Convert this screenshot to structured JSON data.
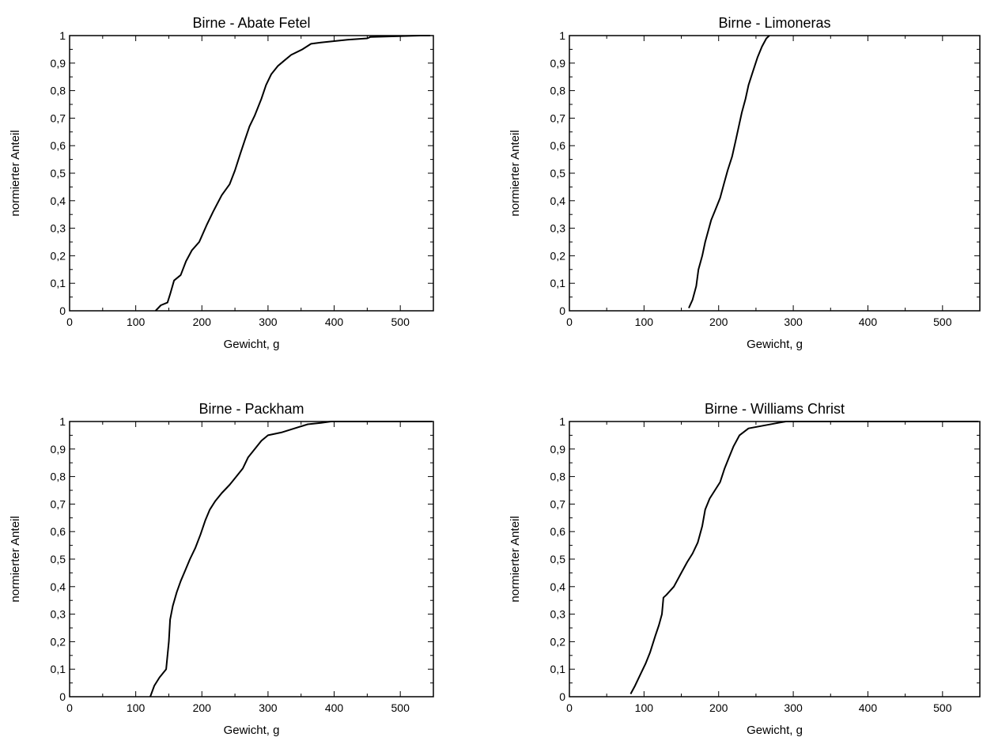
{
  "chart_data": [
    {
      "type": "line",
      "title": "Birne - Abate Fetel",
      "xlabel": "Gewicht, g",
      "ylabel": "normierter Anteil",
      "xlim": [
        0,
        550
      ],
      "ylim": [
        0,
        1
      ],
      "xticks": [
        "0",
        "100",
        "200",
        "300",
        "400",
        "500"
      ],
      "yticks": [
        "0",
        "0,1",
        "0,2",
        "0,3",
        "0,4",
        "0,5",
        "0,6",
        "0,7",
        "0,8",
        "0,9",
        "1"
      ],
      "grid": false,
      "series": [
        {
          "x": [
            130,
            138,
            148,
            152,
            158,
            168,
            176,
            185,
            196,
            207,
            217,
            230,
            242,
            250,
            258,
            265,
            272,
            280,
            290,
            297,
            305,
            315,
            325,
            335,
            352,
            365,
            380,
            420,
            450,
            455,
            530,
            545
          ],
          "y": [
            0,
            0.02,
            0.03,
            0.06,
            0.11,
            0.13,
            0.18,
            0.22,
            0.25,
            0.31,
            0.36,
            0.42,
            0.46,
            0.51,
            0.57,
            0.62,
            0.67,
            0.71,
            0.77,
            0.82,
            0.86,
            0.89,
            0.91,
            0.93,
            0.95,
            0.97,
            0.975,
            0.985,
            0.99,
            0.995,
            1.0,
            1.0
          ]
        }
      ]
    },
    {
      "type": "line",
      "title": "Birne - Limoneras",
      "xlabel": "Gewicht, g",
      "ylabel": "normierter Anteil",
      "xlim": [
        0,
        550
      ],
      "ylim": [
        0,
        1
      ],
      "xticks": [
        "0",
        "100",
        "200",
        "300",
        "400",
        "500"
      ],
      "yticks": [
        "0",
        "0,1",
        "0,2",
        "0,3",
        "0,4",
        "0,5",
        "0,6",
        "0,7",
        "0,8",
        "0,9",
        "1"
      ],
      "grid": false,
      "series": [
        {
          "x": [
            160,
            165,
            170,
            173,
            178,
            182,
            186,
            190,
            196,
            202,
            207,
            212,
            218,
            223,
            227,
            231,
            236,
            240,
            246,
            252,
            258,
            264,
            268
          ],
          "y": [
            0.01,
            0.04,
            0.09,
            0.15,
            0.2,
            0.25,
            0.29,
            0.33,
            0.37,
            0.41,
            0.46,
            0.51,
            0.56,
            0.62,
            0.67,
            0.72,
            0.77,
            0.82,
            0.87,
            0.92,
            0.96,
            0.99,
            1.0
          ]
        }
      ]
    },
    {
      "type": "line",
      "title": "Birne - Packham",
      "xlabel": "Gewicht, g",
      "ylabel": "normierter Anteil",
      "xlim": [
        0,
        550
      ],
      "ylim": [
        0,
        1
      ],
      "xticks": [
        "0",
        "100",
        "200",
        "300",
        "400",
        "500"
      ],
      "yticks": [
        "0",
        "0,1",
        "0,2",
        "0,3",
        "0,4",
        "0,5",
        "0,6",
        "0,7",
        "0,8",
        "0,9",
        "1"
      ],
      "grid": false,
      "series": [
        {
          "x": [
            122,
            128,
            136,
            146,
            150,
            152,
            156,
            162,
            168,
            175,
            182,
            190,
            198,
            205,
            212,
            220,
            230,
            242,
            252,
            262,
            270,
            280,
            290,
            300,
            320,
            340,
            360,
            380,
            395,
            548
          ],
          "y": [
            0,
            0.04,
            0.07,
            0.1,
            0.2,
            0.28,
            0.33,
            0.38,
            0.42,
            0.46,
            0.5,
            0.54,
            0.59,
            0.64,
            0.68,
            0.71,
            0.74,
            0.77,
            0.8,
            0.83,
            0.87,
            0.9,
            0.93,
            0.95,
            0.96,
            0.975,
            0.99,
            0.995,
            1.0,
            1.0
          ]
        }
      ]
    },
    {
      "type": "line",
      "title": "Birne - Williams Christ",
      "xlabel": "Gewicht, g",
      "ylabel": "normierter Anteil",
      "xlim": [
        0,
        550
      ],
      "ylim": [
        0,
        1
      ],
      "xticks": [
        "0",
        "100",
        "200",
        "300",
        "400",
        "500"
      ],
      "yticks": [
        "0",
        "0,1",
        "0,2",
        "0,3",
        "0,4",
        "0,5",
        "0,6",
        "0,7",
        "0,8",
        "0,9",
        "1"
      ],
      "grid": false,
      "series": [
        {
          "x": [
            82,
            88,
            95,
            102,
            108,
            115,
            120,
            124,
            126,
            130,
            140,
            150,
            158,
            165,
            172,
            178,
            182,
            188,
            195,
            202,
            208,
            214,
            220,
            228,
            240,
            260,
            280,
            290,
            548
          ],
          "y": [
            0.01,
            0.04,
            0.08,
            0.12,
            0.16,
            0.22,
            0.26,
            0.3,
            0.36,
            0.37,
            0.4,
            0.45,
            0.49,
            0.52,
            0.56,
            0.62,
            0.68,
            0.72,
            0.75,
            0.78,
            0.83,
            0.87,
            0.91,
            0.95,
            0.975,
            0.985,
            0.995,
            1.0,
            1.0
          ]
        }
      ]
    }
  ]
}
